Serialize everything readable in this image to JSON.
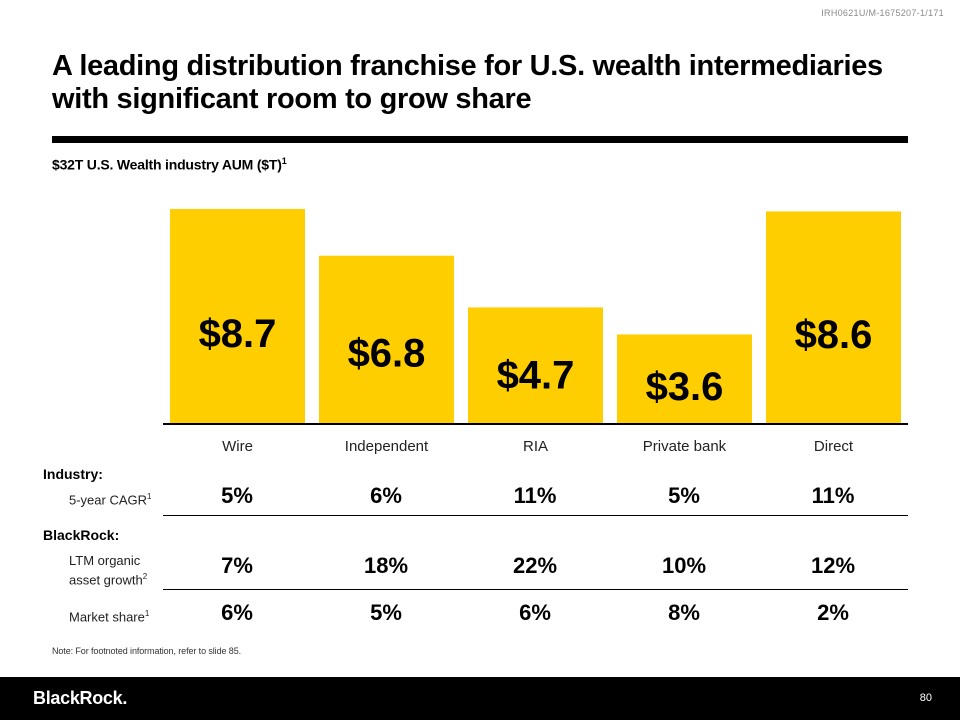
{
  "doc_id": "IRH0621U/M-1675207-1/171",
  "title": "A leading distribution franchise for U.S. wealth intermediaries with significant room to grow share",
  "subtitle": {
    "text": "$32T U.S. Wealth industry AUM ($T)",
    "footnote": "1"
  },
  "chart_data": {
    "type": "bar",
    "title": "$32T U.S. Wealth industry AUM ($T)",
    "categories": [
      "Wire",
      "Independent",
      "RIA",
      "Private bank",
      "Direct"
    ],
    "values": [
      8.7,
      6.8,
      4.7,
      3.6,
      8.6
    ],
    "data_labels": [
      "$8.7",
      "$6.8",
      "$4.7",
      "$3.6",
      "$8.6"
    ],
    "ylim": [
      0,
      8.7
    ],
    "bar_color": "#FFCE00",
    "xlabel": "",
    "ylabel": ""
  },
  "table": {
    "industry_label": "Industry:",
    "blackrock_label": "BlackRock:",
    "rows": [
      {
        "label": "5-year CAGR",
        "footnote": "1",
        "values": [
          "5%",
          "6%",
          "11%",
          "5%",
          "11%"
        ]
      },
      {
        "label": "LTM organic asset growth",
        "footnote": "2",
        "values": [
          "7%",
          "18%",
          "22%",
          "10%",
          "12%"
        ]
      },
      {
        "label": "Market share",
        "footnote": "1",
        "values": [
          "6%",
          "5%",
          "6%",
          "8%",
          "2%"
        ]
      }
    ]
  },
  "note": "Note: For footnoted information, refer to slide 85.",
  "footer": {
    "logo": "BlackRock.",
    "page_number": "80"
  },
  "colors": {
    "accent": "#FFCE00",
    "footer_bg": "#000000"
  }
}
